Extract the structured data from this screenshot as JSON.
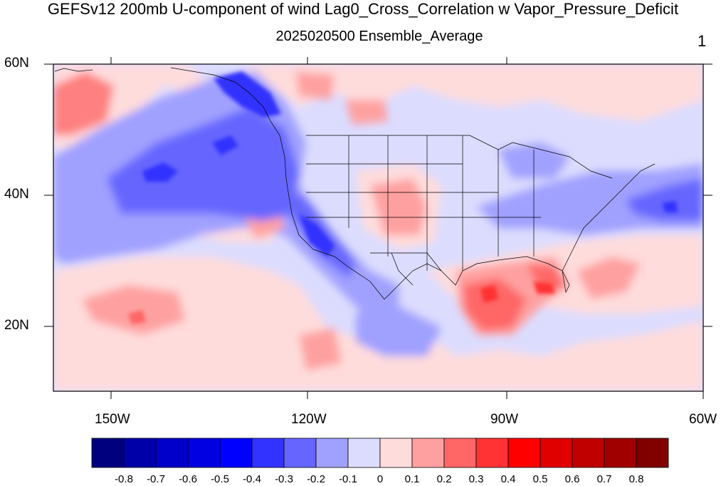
{
  "title": "GEFSv12 200mb U-component of wind Lag0_Cross_Correlation w Vapor_Pressure_Deficit",
  "subtitle": "2025020500 Ensemble_Average",
  "panel_number": "1",
  "map": {
    "projection": "cylindrical-equidistant",
    "lon_range": [
      -160,
      -60
    ],
    "lat_range": [
      10,
      60
    ],
    "lat_ticks": [
      {
        "value": 60,
        "label": "60N"
      },
      {
        "value": 40,
        "label": "40N"
      },
      {
        "value": 20,
        "label": "20N"
      }
    ],
    "lon_ticks": [
      {
        "value": -150,
        "label": "150W"
      },
      {
        "value": -120,
        "label": "120W"
      },
      {
        "value": -90,
        "label": "90W"
      },
      {
        "value": -60,
        "label": "60W"
      }
    ]
  },
  "colorbar": {
    "colors": [
      "#00007f",
      "#0000a8",
      "#0000c8",
      "#0000e0",
      "#0000ff",
      "#3333ff",
      "#6666ff",
      "#a0a0ff",
      "#dcdcff",
      "#ffdcdc",
      "#ffa0a0",
      "#ff6666",
      "#ff3333",
      "#ff0000",
      "#e00000",
      "#c00000",
      "#a00000",
      "#800000"
    ],
    "labels": [
      "-0.8",
      "-0.7",
      "-0.6",
      "-0.5",
      "-0.4",
      "-0.3",
      "-0.2",
      "-0.1",
      "0",
      "0.1",
      "0.2",
      "0.3",
      "0.4",
      "0.5",
      "0.6",
      "0.7",
      "0.8"
    ]
  }
}
